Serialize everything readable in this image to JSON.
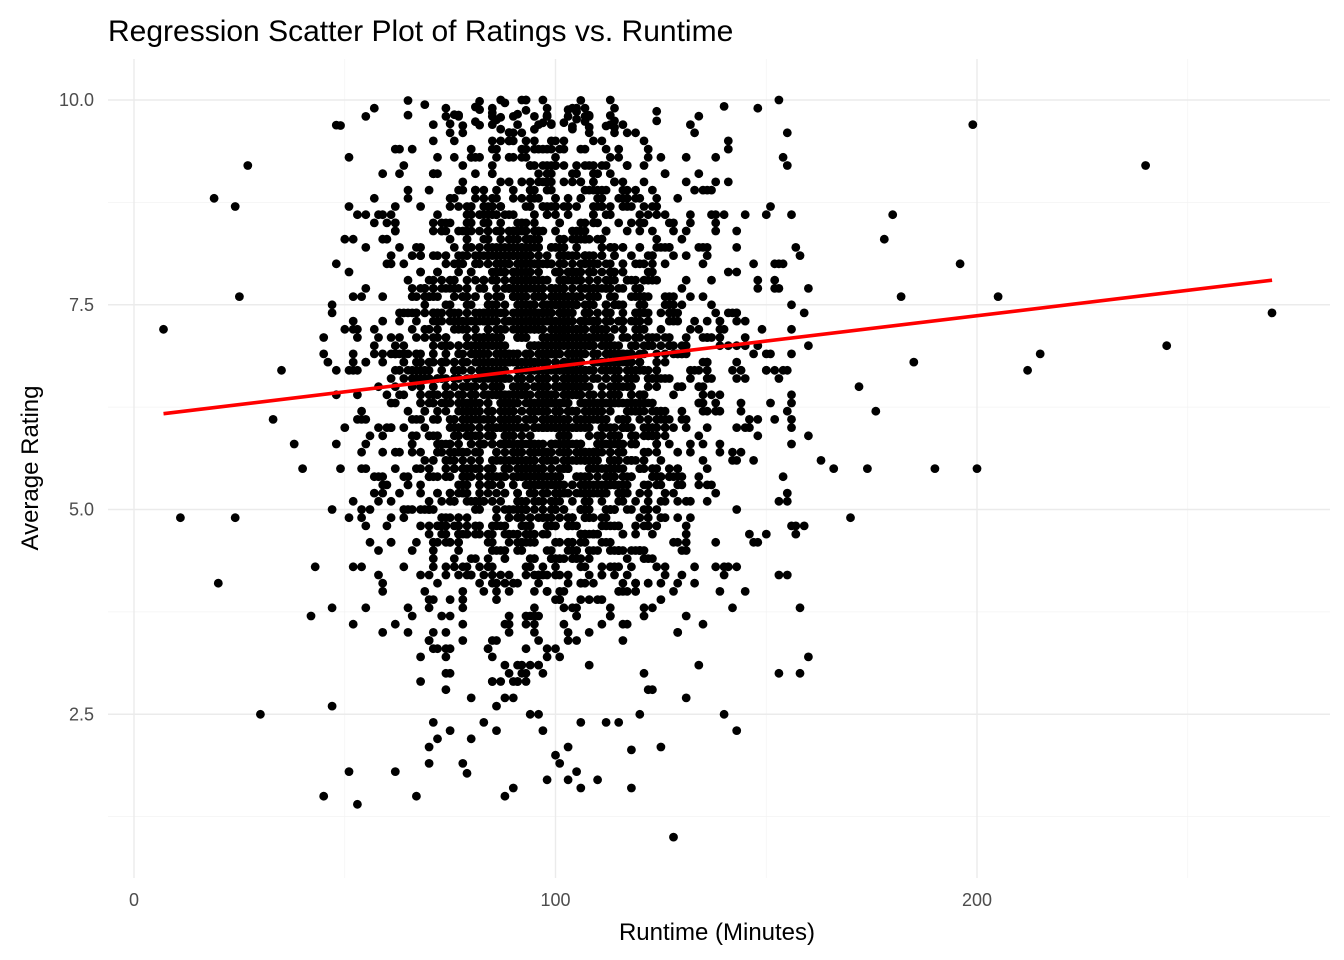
{
  "chart_data": {
    "type": "scatter",
    "title": "Regression Scatter Plot of Ratings vs. Runtime",
    "xlabel": "Runtime (Minutes)",
    "ylabel": "Average Rating",
    "xlim": [
      0,
      280
    ],
    "ylim": [
      0.6,
      10.4
    ],
    "x_ticks": [
      0,
      100,
      200
    ],
    "x_tick_labels": [
      "0",
      "100",
      "200"
    ],
    "y_ticks": [
      2.5,
      5.0,
      7.5,
      10.0
    ],
    "y_tick_labels": [
      "2.5",
      "5.0",
      "7.5",
      "10.0"
    ],
    "x_minor_ticks": [
      50,
      150,
      250
    ],
    "y_minor_ticks": [
      1.25,
      3.75,
      6.25,
      8.75
    ],
    "grid": true,
    "colors": {
      "points": "#000000",
      "regression_line": "#ff0000",
      "grid": "#ebebeb",
      "tick_text": "#4d4d4d"
    },
    "regression_line": {
      "x": [
        7,
        270
      ],
      "y": [
        6.17,
        7.8
      ]
    },
    "outlier_points": {
      "x": [
        7,
        11,
        19,
        20,
        24,
        24,
        25,
        27,
        30,
        33,
        35,
        38,
        40,
        43,
        45,
        47,
        51,
        53,
        55,
        57,
        62,
        65,
        67,
        68,
        70,
        72,
        75,
        78,
        80,
        83,
        86,
        88,
        90,
        94,
        98,
        100,
        105,
        110,
        112,
        115,
        118,
        122,
        128,
        131,
        135,
        140,
        143,
        145,
        148,
        153,
        155,
        156,
        158,
        160,
        163,
        166,
        170,
        172,
        174,
        176,
        178,
        180,
        182,
        185,
        190,
        196,
        199,
        200,
        205,
        212,
        215,
        240,
        245,
        270
      ],
      "y": [
        7.2,
        4.9,
        8.8,
        4.1,
        8.7,
        4.9,
        7.6,
        9.2,
        2.5,
        6.1,
        6.7,
        5.8,
        5.5,
        4.3,
        1.5,
        2.6,
        1.8,
        1.4,
        3.8,
        9.9,
        1.8,
        3.5,
        1.5,
        2.9,
        1.9,
        2.2,
        2.3,
        1.9,
        2.2,
        2.4,
        2.3,
        1.5,
        1.6,
        2.5,
        1.7,
        2.0,
        1.8,
        1.7,
        2.4,
        2.4,
        1.6,
        2.8,
        1.0,
        2.7,
        3.6,
        2.5,
        2.3,
        4.0,
        4.6,
        3.0,
        4.2,
        4.8,
        3.0,
        3.2,
        5.6,
        5.5,
        4.9,
        6.5,
        5.5,
        6.2,
        8.3,
        8.6,
        7.6,
        6.8,
        5.5,
        8.0,
        9.7,
        5.5,
        7.6,
        6.7,
        6.9,
        9.2,
        7.0,
        7.4
      ]
    },
    "bulk_density": {
      "x_center": 97,
      "x_spread": 18,
      "y_center": 6.6,
      "y_spread": 1.5,
      "approx_count": 3400
    }
  }
}
